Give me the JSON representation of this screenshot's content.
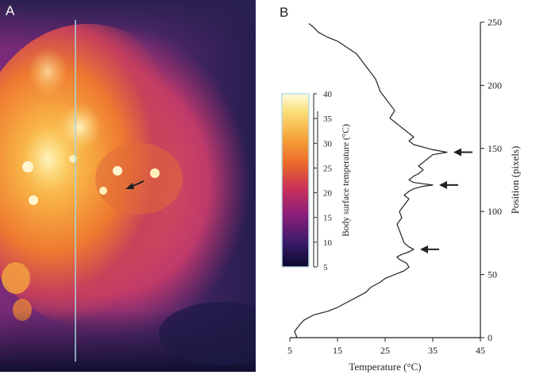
{
  "panels": {
    "a_label": "A",
    "b_label": "B"
  },
  "colors": {
    "profile_line": "#a8d4dc",
    "curve": "#222222",
    "arrow": "#222222"
  },
  "chart_data": [
    {
      "type": "heatmap",
      "description_label": "A",
      "colormap": [
        "#0a0a2e",
        "#3a1a6a",
        "#8a1f7a",
        "#c8305a",
        "#ec6a2a",
        "#f6a63a",
        "#fbe07a"
      ],
      "annotations": [
        "arrow pointing to a warm spot"
      ]
    },
    {
      "type": "line",
      "xlabel": "Temperature (°C)",
      "ylabel": "Position (pixels)",
      "xlim": [
        5,
        45
      ],
      "ylim": [
        0,
        250
      ],
      "xticks": [
        5,
        15,
        25,
        35,
        45
      ],
      "yticks": [
        0,
        50,
        100,
        150,
        200,
        250
      ],
      "series": [
        {
          "points": [
            [
              6.5,
              0
            ],
            [
              6,
              5
            ],
            [
              7,
              10
            ],
            [
              8,
              14
            ],
            [
              10,
              18
            ],
            [
              13,
              21
            ],
            [
              15,
              24
            ],
            [
              17,
              28
            ],
            [
              19,
              32
            ],
            [
              21,
              36
            ],
            [
              22,
              40
            ],
            [
              24,
              44
            ],
            [
              25,
              47
            ],
            [
              27,
              50
            ],
            [
              29,
              53
            ],
            [
              30,
              56
            ],
            [
              29.5,
              59
            ],
            [
              28,
              62
            ],
            [
              27.5,
              64
            ],
            [
              28.5,
              66
            ],
            [
              30,
              68
            ],
            [
              31,
              70
            ],
            [
              30,
              72
            ],
            [
              29,
              75
            ],
            [
              28.5,
              80
            ],
            [
              28,
              85
            ],
            [
              27.5,
              90
            ],
            [
              28.5,
              95
            ],
            [
              28,
              100
            ],
            [
              29,
              105
            ],
            [
              30,
              110
            ],
            [
              29,
              113
            ],
            [
              30,
              116
            ],
            [
              31,
              118
            ],
            [
              33,
              120
            ],
            [
              35,
              121
            ],
            [
              33,
              122
            ],
            [
              31,
              123
            ],
            [
              30,
              125
            ],
            [
              31,
              128
            ],
            [
              32,
              130
            ],
            [
              33,
              133
            ],
            [
              32,
              136
            ],
            [
              33,
              139
            ],
            [
              34,
              142
            ],
            [
              35,
              145
            ],
            [
              38,
              147
            ],
            [
              35,
              149
            ],
            [
              33,
              151
            ],
            [
              31,
              153
            ],
            [
              30,
              156
            ],
            [
              31,
              159
            ],
            [
              30,
              162
            ],
            [
              29,
              165
            ],
            [
              28,
              168
            ],
            [
              27,
              171
            ],
            [
              26,
              174
            ],
            [
              26.5,
              177
            ],
            [
              27,
              180
            ],
            [
              26,
              185
            ],
            [
              25,
              190
            ],
            [
              24,
              195
            ],
            [
              23.5,
              200
            ],
            [
              23,
              205
            ],
            [
              22,
              210
            ],
            [
              21,
              215
            ],
            [
              20,
              220
            ],
            [
              19,
              225
            ],
            [
              17,
              230
            ],
            [
              15,
              235
            ],
            [
              13,
              238
            ],
            [
              11,
              242
            ],
            [
              10,
              246
            ],
            [
              9,
              249
            ]
          ],
          "annotations": [
            "arrow at y≈70",
            "arrow at y≈121",
            "arrow at y≈147"
          ]
        }
      ],
      "colorbar": {
        "label": "Body surface temperature (°C)",
        "min": 5,
        "max": 40,
        "ticks": [
          5,
          10,
          15,
          20,
          25,
          30,
          35,
          40
        ],
        "colors": [
          "#0a0a2e",
          "#3a1a6a",
          "#8a1f7a",
          "#c8305a",
          "#ec6a2a",
          "#f6a63a",
          "#fbe07a",
          "#fffbe0"
        ]
      },
      "arrows_y": [
        70,
        121,
        147
      ]
    }
  ]
}
